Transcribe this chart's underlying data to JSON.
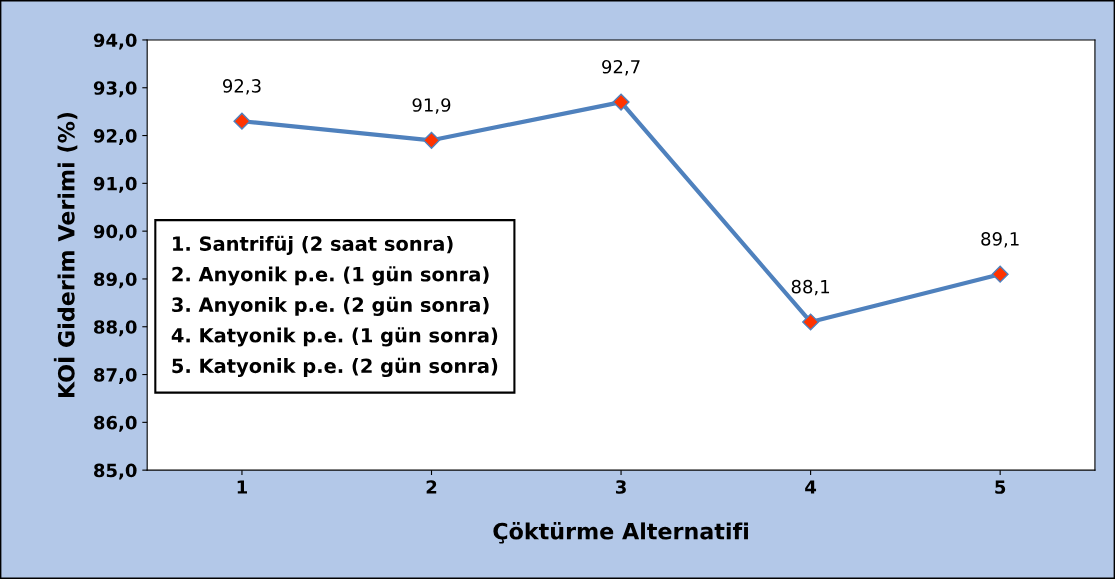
{
  "chart_data": {
    "type": "line",
    "xlabel": "Çöktürme Alternatifi",
    "ylabel": "KOİ Giderim Verimi (%)",
    "categories": [
      "1",
      "2",
      "3",
      "4",
      "5"
    ],
    "series": [
      {
        "color": "#4f81bd",
        "values": [
          92.3,
          91.9,
          92.7,
          88.1,
          89.1
        ],
        "value_labels": [
          "92,3",
          "91,9",
          "92,7",
          "88,1",
          "89,1"
        ]
      }
    ],
    "ylim": [
      85,
      94
    ],
    "yticks": [
      {
        "value": 85,
        "label": "85,0"
      },
      {
        "value": 86,
        "label": "86,0"
      },
      {
        "value": 87,
        "label": "87,0"
      },
      {
        "value": 88,
        "label": "88,0"
      },
      {
        "value": 89,
        "label": "89,0"
      },
      {
        "value": 90,
        "label": "90,0"
      },
      {
        "value": 91,
        "label": "91,0"
      },
      {
        "value": 92,
        "label": "92,0"
      },
      {
        "value": 93,
        "label": "93,0"
      },
      {
        "value": 94,
        "label": "94,0"
      }
    ],
    "annotations": [
      "1. Santrifüj (2 saat sonra)",
      "2. Anyonik p.e. (1 gün sonra)",
      "3. Anyonik p.e. (2 gün sonra)",
      "4. Katyonik p.e. (1 gün sonra)",
      "5. Katyonik p.e. (2 gün sonra)"
    ],
    "marker": "diamond",
    "line_style": "solid",
    "grid": false,
    "legend": false
  }
}
